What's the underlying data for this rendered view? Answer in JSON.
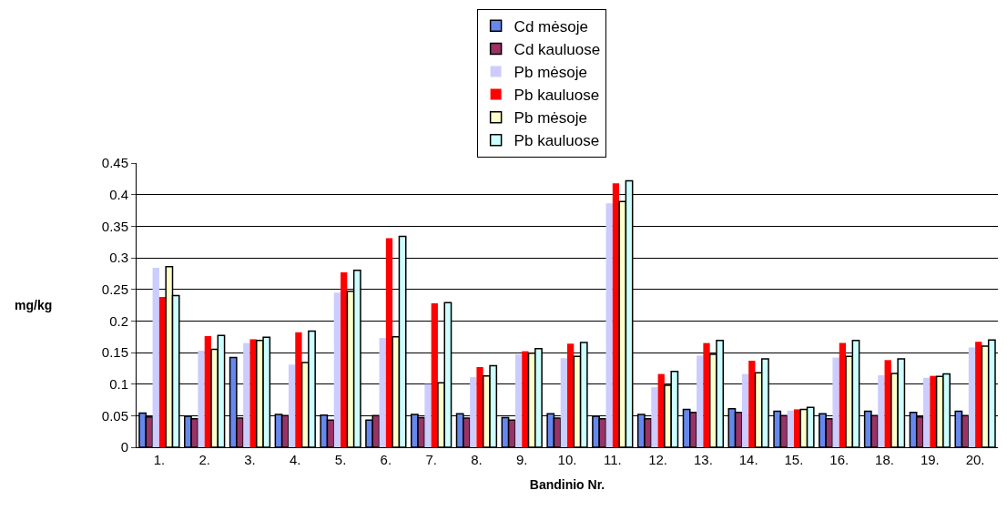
{
  "chart_data": {
    "type": "bar",
    "xlabel": "Bandinio Nr.",
    "ylabel": "mg/kg",
    "categories": [
      "1.",
      "2.",
      "3.",
      "4.",
      "5.",
      "6.",
      "7.",
      "8.",
      "9.",
      "10.",
      "11.",
      "12.",
      "13.",
      "14.",
      "15.",
      "16.",
      "18.",
      "19.",
      "20."
    ],
    "series": [
      {
        "name": "Cd mėsoje",
        "color": "#6688ee",
        "values": [
          0.054,
          0.049,
          0.142,
          0.052,
          0.051,
          0.043,
          0.052,
          0.053,
          0.047,
          0.053,
          0.049,
          0.052,
          0.06,
          0.061,
          0.057,
          0.053,
          0.057,
          0.055,
          0.057
        ]
      },
      {
        "name": "Cd kauluose",
        "color": "#993366",
        "values": [
          0.048,
          0.045,
          0.046,
          0.05,
          0.043,
          0.05,
          0.047,
          0.046,
          0.043,
          0.046,
          0.045,
          0.045,
          0.055,
          0.055,
          0.05,
          0.045,
          0.05,
          0.048,
          0.05
        ]
      },
      {
        "name": "Pb mėsoje",
        "color": "#ccccff",
        "values": [
          0.284,
          0.153,
          0.165,
          0.131,
          0.245,
          0.173,
          0.1,
          0.111,
          0.147,
          0.141,
          0.386,
          0.095,
          0.145,
          0.116,
          0.058,
          0.142,
          0.114,
          0.11,
          0.158
        ]
      },
      {
        "name": "Pb kauluose",
        "color": "#ff0000",
        "values": [
          0.238,
          0.176,
          0.171,
          0.182,
          0.277,
          0.331,
          0.228,
          0.127,
          0.152,
          0.164,
          0.418,
          0.116,
          0.165,
          0.137,
          0.06,
          0.165,
          0.138,
          0.113,
          0.167
        ]
      },
      {
        "name": "Pb mėsoje",
        "color": "#ffffcc",
        "values": [
          0.286,
          0.155,
          0.169,
          0.134,
          0.247,
          0.175,
          0.102,
          0.113,
          0.149,
          0.144,
          0.389,
          0.098,
          0.147,
          0.118,
          0.06,
          0.144,
          0.117,
          0.112,
          0.16
        ]
      },
      {
        "name": "Pb kauluose",
        "color": "#ccffff",
        "values": [
          0.24,
          0.177,
          0.174,
          0.184,
          0.28,
          0.334,
          0.229,
          0.129,
          0.156,
          0.166,
          0.422,
          0.12,
          0.169,
          0.14,
          0.063,
          0.169,
          0.14,
          0.116,
          0.17
        ]
      }
    ],
    "ylim": [
      0,
      0.45
    ],
    "yticks": [
      0,
      0.05,
      0.1,
      0.15,
      0.2,
      0.25,
      0.3,
      0.35,
      0.4,
      0.45
    ],
    "grid": "y",
    "legend": "top"
  }
}
